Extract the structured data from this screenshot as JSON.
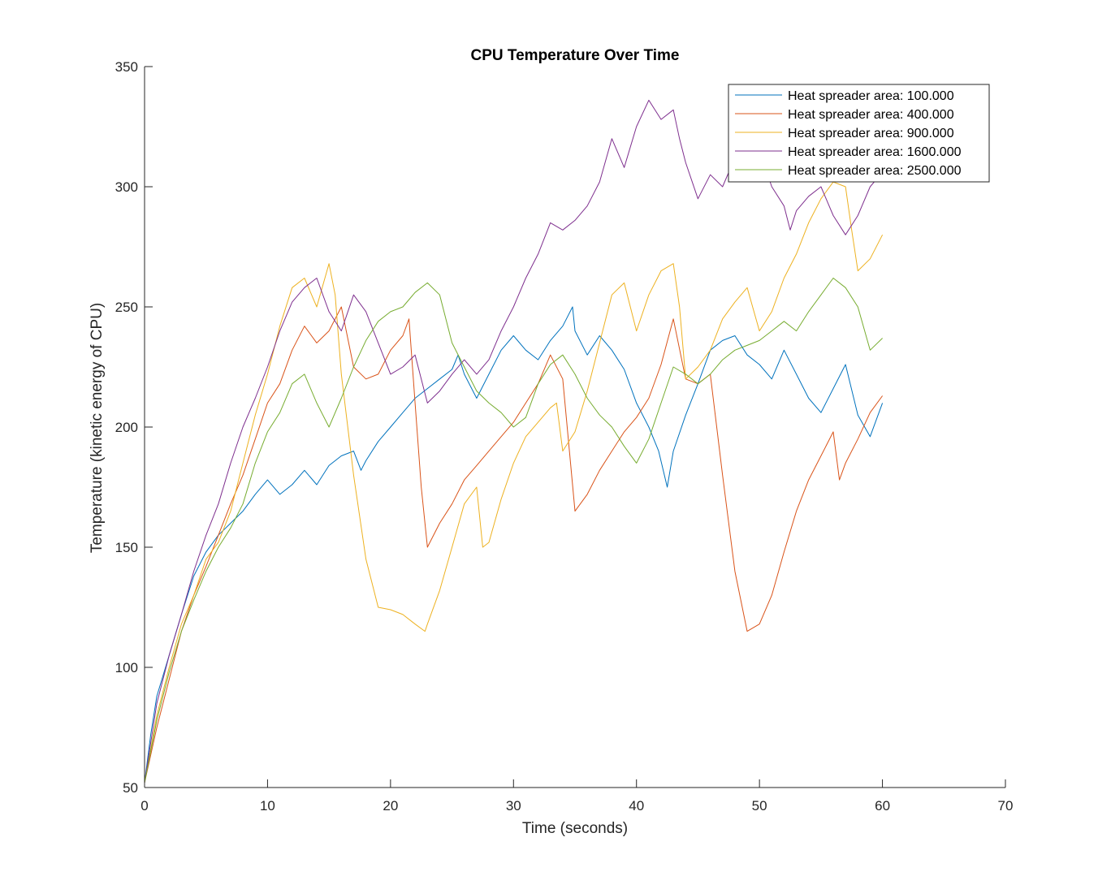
{
  "chart_data": {
    "type": "line",
    "title": "CPU Temperature Over Time",
    "xlabel": "Time (seconds)",
    "ylabel": "Temperature (kinetic energy of CPU)",
    "xlim": [
      0,
      70
    ],
    "ylim": [
      50,
      350
    ],
    "xticks": [
      0,
      10,
      20,
      30,
      40,
      50,
      60,
      70
    ],
    "yticks": [
      50,
      100,
      150,
      200,
      250,
      300,
      350
    ],
    "xtick_labels": [
      "0",
      "10",
      "20",
      "30",
      "40",
      "50",
      "60",
      "70"
    ],
    "ytick_labels": [
      "50",
      "100",
      "150",
      "200",
      "250",
      "300",
      "350"
    ],
    "grid": false,
    "legend_position": "top-right",
    "series": [
      {
        "name": "Heat spreader area: 100.000",
        "color": "#0072BD",
        "points": [
          [
            0,
            52
          ],
          [
            0.5,
            72
          ],
          [
            1,
            88
          ],
          [
            2,
            105
          ],
          [
            3,
            122
          ],
          [
            4,
            138
          ],
          [
            5,
            148
          ],
          [
            6,
            155
          ],
          [
            7,
            160
          ],
          [
            8,
            165
          ],
          [
            9,
            172
          ],
          [
            10,
            178
          ],
          [
            11,
            172
          ],
          [
            12,
            176
          ],
          [
            13,
            182
          ],
          [
            14,
            176
          ],
          [
            15,
            184
          ],
          [
            16,
            188
          ],
          [
            17,
            190
          ],
          [
            17.6,
            182
          ],
          [
            18,
            186
          ],
          [
            19,
            194
          ],
          [
            20,
            200
          ],
          [
            21,
            206
          ],
          [
            22,
            212
          ],
          [
            23,
            216
          ],
          [
            24,
            220
          ],
          [
            25,
            224
          ],
          [
            25.5,
            230
          ],
          [
            26,
            222
          ],
          [
            27,
            212
          ],
          [
            28,
            222
          ],
          [
            29,
            232
          ],
          [
            30,
            238
          ],
          [
            31,
            232
          ],
          [
            32,
            228
          ],
          [
            33,
            236
          ],
          [
            34,
            242
          ],
          [
            34.8,
            250
          ],
          [
            35,
            240
          ],
          [
            36,
            230
          ],
          [
            37,
            238
          ],
          [
            38,
            232
          ],
          [
            39,
            224
          ],
          [
            40,
            210
          ],
          [
            41,
            200
          ],
          [
            41.8,
            190
          ],
          [
            42.5,
            175
          ],
          [
            43,
            190
          ],
          [
            44,
            205
          ],
          [
            45,
            218
          ],
          [
            46,
            232
          ],
          [
            47,
            236
          ],
          [
            48,
            238
          ],
          [
            49,
            230
          ],
          [
            50,
            226
          ],
          [
            51,
            220
          ],
          [
            52,
            232
          ],
          [
            53,
            222
          ],
          [
            54,
            212
          ],
          [
            55,
            206
          ],
          [
            56,
            216
          ],
          [
            57,
            226
          ],
          [
            58,
            205
          ],
          [
            59,
            196
          ],
          [
            60,
            210
          ]
        ]
      },
      {
        "name": "Heat spreader area: 400.000",
        "color": "#D95319",
        "points": [
          [
            0,
            52
          ],
          [
            1,
            75
          ],
          [
            2,
            95
          ],
          [
            3,
            115
          ],
          [
            4,
            130
          ],
          [
            5,
            142
          ],
          [
            6,
            155
          ],
          [
            7,
            168
          ],
          [
            8,
            180
          ],
          [
            9,
            195
          ],
          [
            10,
            210
          ],
          [
            11,
            218
          ],
          [
            12,
            232
          ],
          [
            13,
            242
          ],
          [
            14,
            235
          ],
          [
            15,
            240
          ],
          [
            16,
            250
          ],
          [
            17,
            225
          ],
          [
            18,
            220
          ],
          [
            19,
            222
          ],
          [
            20,
            232
          ],
          [
            21,
            238
          ],
          [
            21.5,
            245
          ],
          [
            22,
            210
          ],
          [
            22.5,
            175
          ],
          [
            23,
            150
          ],
          [
            24,
            160
          ],
          [
            25,
            168
          ],
          [
            26,
            178
          ],
          [
            27,
            184
          ],
          [
            28,
            190
          ],
          [
            29,
            196
          ],
          [
            30,
            202
          ],
          [
            31,
            210
          ],
          [
            32,
            218
          ],
          [
            33,
            230
          ],
          [
            34,
            220
          ],
          [
            35,
            165
          ],
          [
            36,
            172
          ],
          [
            37,
            182
          ],
          [
            38,
            190
          ],
          [
            39,
            198
          ],
          [
            40,
            204
          ],
          [
            41,
            212
          ],
          [
            42,
            226
          ],
          [
            43,
            245
          ],
          [
            44,
            220
          ],
          [
            45,
            218
          ],
          [
            46,
            222
          ],
          [
            47,
            180
          ],
          [
            48,
            140
          ],
          [
            49,
            115
          ],
          [
            50,
            118
          ],
          [
            51,
            130
          ],
          [
            52,
            148
          ],
          [
            53,
            165
          ],
          [
            54,
            178
          ],
          [
            55,
            188
          ],
          [
            56,
            198
          ],
          [
            56.5,
            178
          ],
          [
            57,
            185
          ],
          [
            58,
            195
          ],
          [
            59,
            206
          ],
          [
            60,
            213
          ]
        ]
      },
      {
        "name": "Heat spreader area: 900.000",
        "color": "#EDB120",
        "points": [
          [
            0,
            52
          ],
          [
            1,
            80
          ],
          [
            2,
            100
          ],
          [
            3,
            118
          ],
          [
            4,
            130
          ],
          [
            5,
            145
          ],
          [
            6,
            152
          ],
          [
            7,
            165
          ],
          [
            8,
            185
          ],
          [
            9,
            205
          ],
          [
            10,
            222
          ],
          [
            11,
            242
          ],
          [
            12,
            258
          ],
          [
            13,
            262
          ],
          [
            14,
            250
          ],
          [
            15,
            268
          ],
          [
            15.5,
            255
          ],
          [
            16,
            222
          ],
          [
            17,
            180
          ],
          [
            18,
            145
          ],
          [
            19,
            125
          ],
          [
            20,
            124
          ],
          [
            21,
            122
          ],
          [
            22,
            118
          ],
          [
            22.8,
            115
          ],
          [
            23,
            118
          ],
          [
            24,
            132
          ],
          [
            25,
            150
          ],
          [
            26,
            168
          ],
          [
            27,
            175
          ],
          [
            27.5,
            150
          ],
          [
            28,
            152
          ],
          [
            29,
            170
          ],
          [
            30,
            185
          ],
          [
            31,
            196
          ],
          [
            32,
            202
          ],
          [
            33,
            208
          ],
          [
            33.5,
            210
          ],
          [
            34,
            190
          ],
          [
            35,
            198
          ],
          [
            36,
            215
          ],
          [
            37,
            235
          ],
          [
            38,
            255
          ],
          [
            39,
            260
          ],
          [
            40,
            240
          ],
          [
            41,
            255
          ],
          [
            42,
            265
          ],
          [
            43,
            268
          ],
          [
            43.5,
            250
          ],
          [
            44,
            220
          ],
          [
            45,
            225
          ],
          [
            46,
            232
          ],
          [
            47,
            245
          ],
          [
            48,
            252
          ],
          [
            49,
            258
          ],
          [
            50,
            240
          ],
          [
            51,
            248
          ],
          [
            52,
            262
          ],
          [
            53,
            272
          ],
          [
            54,
            285
          ],
          [
            55,
            295
          ],
          [
            56,
            302
          ],
          [
            57,
            300
          ],
          [
            57.5,
            282
          ],
          [
            58,
            265
          ],
          [
            59,
            270
          ],
          [
            60,
            280
          ]
        ]
      },
      {
        "name": "Heat spreader area: 1600.000",
        "color": "#7E2F8E",
        "points": [
          [
            0,
            52
          ],
          [
            1,
            85
          ],
          [
            2,
            105
          ],
          [
            3,
            122
          ],
          [
            4,
            140
          ],
          [
            5,
            155
          ],
          [
            6,
            168
          ],
          [
            7,
            185
          ],
          [
            8,
            200
          ],
          [
            9,
            212
          ],
          [
            10,
            225
          ],
          [
            11,
            240
          ],
          [
            12,
            252
          ],
          [
            13,
            258
          ],
          [
            14,
            262
          ],
          [
            15,
            248
          ],
          [
            16,
            240
          ],
          [
            17,
            255
          ],
          [
            18,
            248
          ],
          [
            19,
            235
          ],
          [
            20,
            222
          ],
          [
            21,
            225
          ],
          [
            22,
            230
          ],
          [
            23,
            210
          ],
          [
            24,
            215
          ],
          [
            25,
            222
          ],
          [
            26,
            228
          ],
          [
            27,
            222
          ],
          [
            28,
            228
          ],
          [
            29,
            240
          ],
          [
            30,
            250
          ],
          [
            31,
            262
          ],
          [
            32,
            272
          ],
          [
            33,
            285
          ],
          [
            34,
            282
          ],
          [
            35,
            286
          ],
          [
            36,
            292
          ],
          [
            37,
            302
          ],
          [
            38,
            320
          ],
          [
            39,
            308
          ],
          [
            40,
            325
          ],
          [
            41,
            336
          ],
          [
            42,
            328
          ],
          [
            43,
            332
          ],
          [
            43.5,
            320
          ],
          [
            44,
            310
          ],
          [
            45,
            295
          ],
          [
            46,
            305
          ],
          [
            47,
            300
          ],
          [
            48,
            312
          ],
          [
            49,
            305
          ],
          [
            50,
            315
          ],
          [
            51,
            300
          ],
          [
            52,
            292
          ],
          [
            52.5,
            282
          ],
          [
            53,
            290
          ],
          [
            54,
            296
          ],
          [
            55,
            300
          ],
          [
            56,
            288
          ],
          [
            57,
            280
          ],
          [
            58,
            288
          ],
          [
            59,
            300
          ],
          [
            60,
            306
          ]
        ]
      },
      {
        "name": "Heat spreader area: 2500.000",
        "color": "#77AC30",
        "points": [
          [
            0,
            52
          ],
          [
            1,
            78
          ],
          [
            2,
            98
          ],
          [
            3,
            115
          ],
          [
            4,
            128
          ],
          [
            5,
            140
          ],
          [
            6,
            150
          ],
          [
            7,
            158
          ],
          [
            8,
            168
          ],
          [
            9,
            185
          ],
          [
            10,
            198
          ],
          [
            11,
            206
          ],
          [
            12,
            218
          ],
          [
            13,
            222
          ],
          [
            14,
            210
          ],
          [
            15,
            200
          ],
          [
            16,
            212
          ],
          [
            17,
            225
          ],
          [
            18,
            236
          ],
          [
            19,
            244
          ],
          [
            20,
            248
          ],
          [
            21,
            250
          ],
          [
            22,
            256
          ],
          [
            23,
            260
          ],
          [
            24,
            255
          ],
          [
            25,
            235
          ],
          [
            26,
            225
          ],
          [
            27,
            215
          ],
          [
            28,
            210
          ],
          [
            29,
            206
          ],
          [
            30,
            200
          ],
          [
            31,
            204
          ],
          [
            32,
            218
          ],
          [
            33,
            226
          ],
          [
            34,
            230
          ],
          [
            35,
            222
          ],
          [
            36,
            212
          ],
          [
            37,
            205
          ],
          [
            38,
            200
          ],
          [
            39,
            192
          ],
          [
            40,
            185
          ],
          [
            41,
            195
          ],
          [
            42,
            210
          ],
          [
            43,
            225
          ],
          [
            44,
            222
          ],
          [
            45,
            218
          ],
          [
            46,
            222
          ],
          [
            47,
            228
          ],
          [
            48,
            232
          ],
          [
            49,
            234
          ],
          [
            50,
            236
          ],
          [
            51,
            240
          ],
          [
            52,
            244
          ],
          [
            53,
            240
          ],
          [
            54,
            248
          ],
          [
            55,
            255
          ],
          [
            56,
            262
          ],
          [
            57,
            258
          ],
          [
            58,
            250
          ],
          [
            59,
            232
          ],
          [
            60,
            237
          ]
        ]
      }
    ]
  }
}
